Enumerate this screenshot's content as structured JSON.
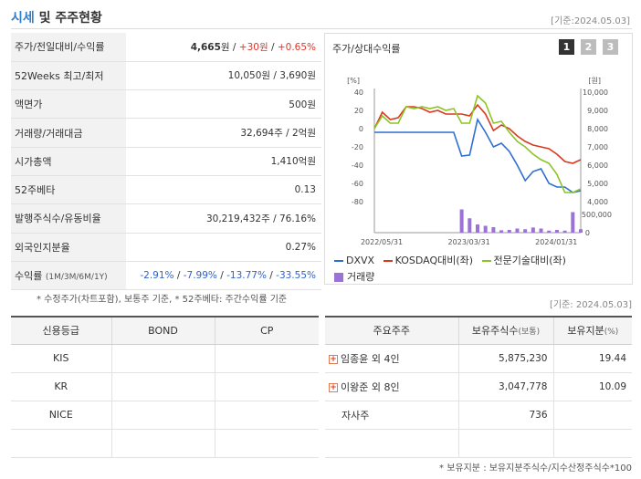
{
  "header": {
    "title_accent": "시세",
    "title_rest": " 및 주주현황",
    "date": "[기준:2024.05.03]"
  },
  "price_table": [
    {
      "label": "주가/전일대비/수익률",
      "value_a": "4,665",
      "unit_a": "원",
      "sep1": " / ",
      "value_b": "+30원",
      "sep2": " / ",
      "value_c": "+0.65%"
    },
    {
      "label": "52Weeks 최고/최저",
      "value": "10,050원 / 3,690원"
    },
    {
      "label": "액면가",
      "value": "500원"
    },
    {
      "label": "거래량/거래대금",
      "value": "32,694주 / 2억원"
    },
    {
      "label": "시가총액",
      "value": "1,410억원"
    },
    {
      "label": "52주베타",
      "value": "0.13"
    },
    {
      "label": "발행주식수/유동비율",
      "value": "30,219,432주 / 76.16%"
    },
    {
      "label": "외국인지분율",
      "value": "0.27%"
    },
    {
      "label": "수익률",
      "label_small": "(1M/3M/6M/1Y)",
      "returns": [
        "-2.91%",
        "-7.99%",
        "-13.77%",
        "-33.55%"
      ],
      "sep": " / "
    }
  ],
  "chart_panel": {
    "title": "주가/상대수익률",
    "pages": [
      "1",
      "2",
      "3"
    ]
  },
  "chart_data": {
    "type": "line",
    "left_axis_unit": "[%]",
    "right_axis_unit": "[원]",
    "left_ticks": [
      "40",
      "20",
      "0",
      "-20",
      "-40",
      "-60",
      "-80"
    ],
    "right_ticks": [
      "10,000",
      "9,000",
      "8,000",
      "7,000",
      "6,000",
      "5,000",
      "4,000"
    ],
    "volume_ticks": [
      "500,000",
      "0"
    ],
    "x_tick_labels": [
      "2022/05/31",
      "2023/03/31",
      "2024/01/31"
    ],
    "ylim_left": [
      -80,
      40
    ],
    "series": [
      {
        "name": "DXVX",
        "color": "#2f6fd1",
        "values": [
          -4,
          -4,
          -4,
          -4,
          -4,
          -4,
          -4,
          -4,
          -4,
          -4,
          -4,
          -30,
          -29,
          10,
          -4,
          -20,
          -16,
          -25,
          -40,
          -57,
          -47,
          -44,
          -60,
          -64,
          -64,
          -70,
          -68
        ]
      },
      {
        "name": "KOSDAQ대비(좌)",
        "color": "#d8391f",
        "values": [
          0,
          18,
          10,
          12,
          24,
          24,
          22,
          18,
          20,
          16,
          16,
          16,
          14,
          26,
          16,
          -2,
          4,
          0,
          -8,
          -14,
          -18,
          -20,
          -22,
          -28,
          -36,
          -38,
          -34
        ]
      },
      {
        "name": "전문기술대비(좌)",
        "color": "#8dc425",
        "values": [
          0,
          14,
          6,
          6,
          24,
          22,
          24,
          22,
          24,
          20,
          22,
          6,
          6,
          36,
          28,
          6,
          8,
          -4,
          -14,
          -20,
          -28,
          -34,
          -38,
          -50,
          -70,
          -70,
          -66
        ]
      }
    ],
    "volume": {
      "name": "거래량",
      "color": "#9b72d6",
      "values": [
        0,
        0,
        0,
        0,
        0,
        0,
        0,
        0,
        0,
        0,
        0,
        680000,
        420000,
        240000,
        200000,
        160000,
        70000,
        80000,
        120000,
        100000,
        150000,
        120000,
        60000,
        80000,
        60000,
        600000,
        100000
      ]
    }
  },
  "notes": {
    "left": "* 수정주가(차트포함), 보통주 기준, * 52주베타: 주간수익률 기준",
    "right_date": "[기준: 2024.05.03]",
    "bottom": "* 보유지분 : 보유지분주식수/지수산정주식수*100"
  },
  "credit_table": {
    "headers": [
      "신용등급",
      "BOND",
      "CP"
    ],
    "rows": [
      [
        "KIS",
        "",
        ""
      ],
      [
        "KR",
        "",
        ""
      ],
      [
        "NICE",
        "",
        ""
      ],
      [
        "",
        "",
        ""
      ]
    ]
  },
  "holder_table": {
    "headers": [
      "주요주주",
      "보유주식수",
      "(보통)",
      "보유지분",
      "(%)"
    ],
    "rows": [
      {
        "name": "임종윤 외 4인",
        "shares": "5,875,230",
        "pct": "19.44",
        "expandable": true
      },
      {
        "name": "이왕준 외 8인",
        "shares": "3,047,778",
        "pct": "10.09",
        "expandable": true
      },
      {
        "name": "자사주",
        "shares": "736",
        "pct": "",
        "expandable": false
      },
      {
        "name": "",
        "shares": "",
        "pct": "",
        "expandable": false
      }
    ]
  }
}
